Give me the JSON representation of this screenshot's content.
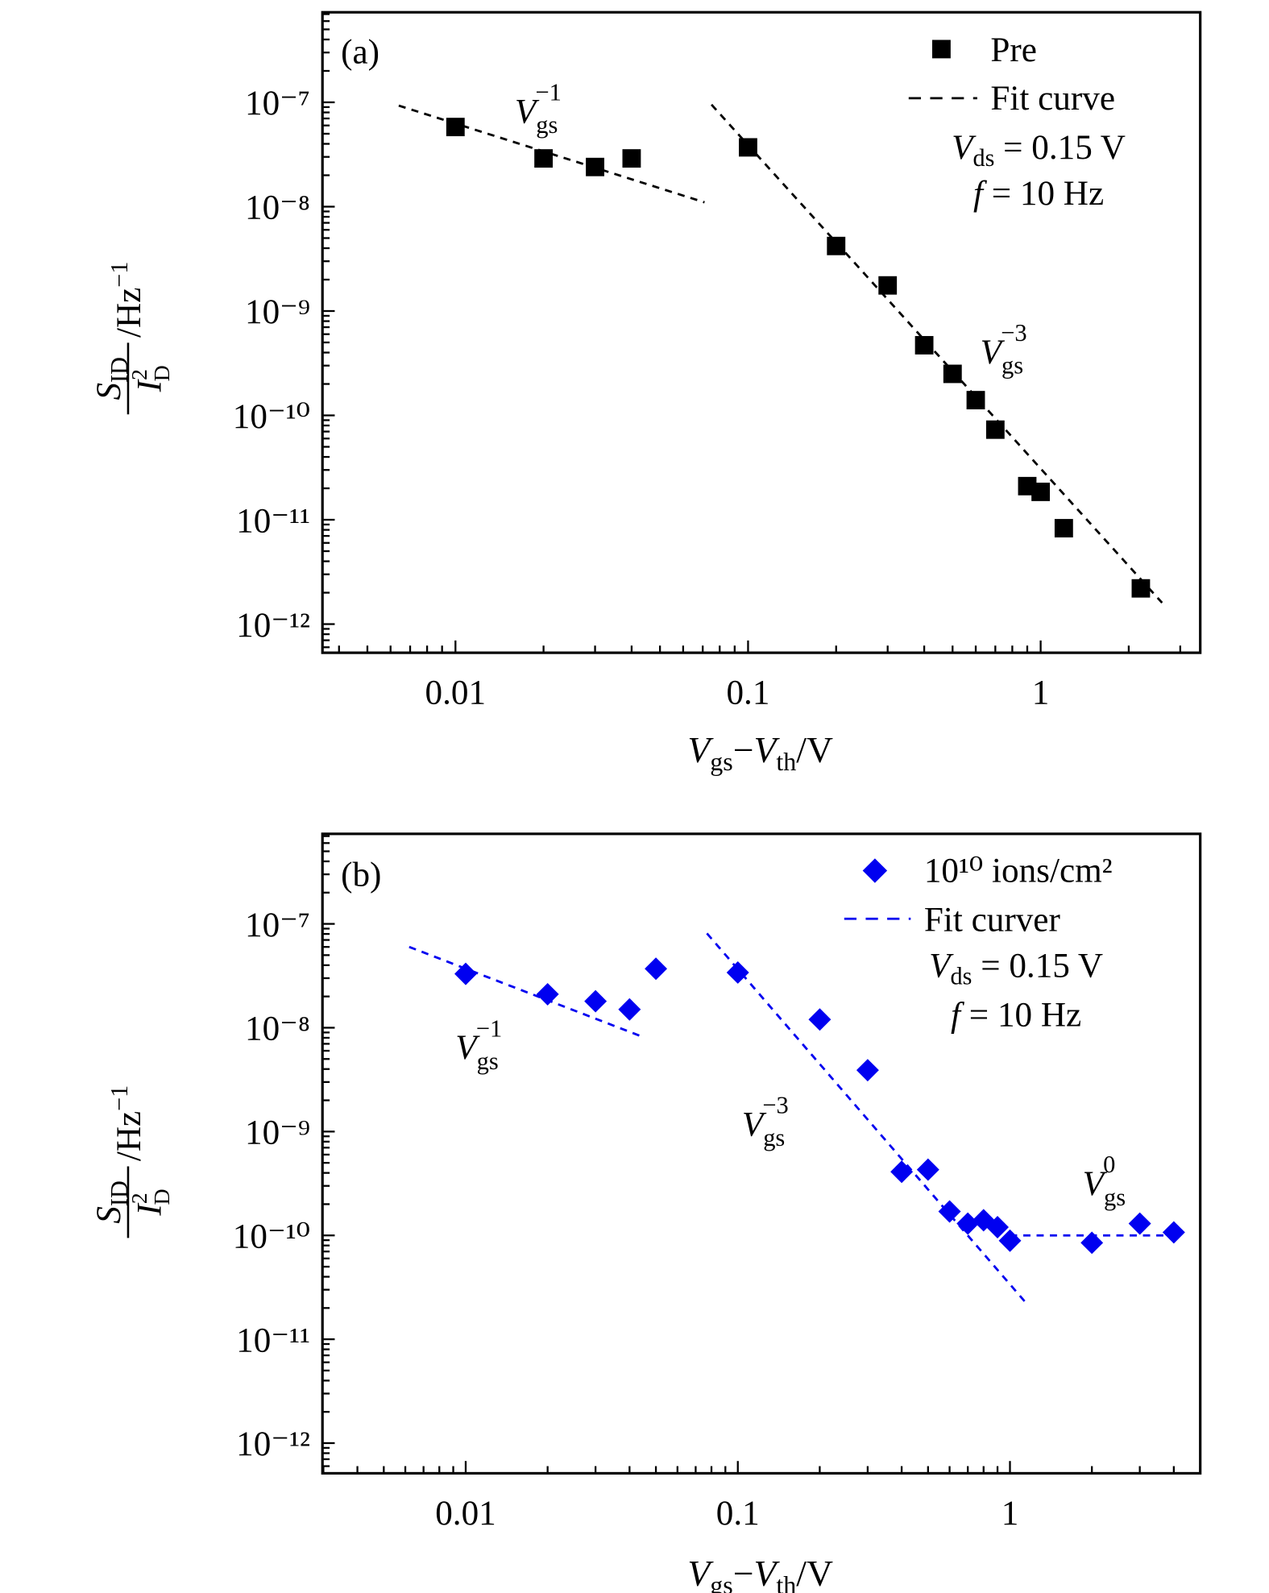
{
  "chart_data": [
    {
      "type": "scatter",
      "panel_label": "(a)",
      "x_scale": "log",
      "y_scale": "log",
      "xlim": [
        0.0035,
        3.5
      ],
      "ylim": [
        7.3e-13,
        7.3e-07
      ],
      "xticks": [
        0.01,
        0.1,
        1
      ],
      "xtick_labels": [
        "0.01",
        "0.1",
        "1"
      ],
      "yticks": [
        1e-07,
        1e-08,
        1e-09,
        1e-10,
        1e-11,
        1e-12
      ],
      "ytick_labels": [
        "10⁻⁷",
        "10⁻⁸",
        "10⁻⁹",
        "10⁻¹⁰",
        "10⁻¹¹",
        "10⁻¹²"
      ],
      "xlabel": {
        "v1": "V",
        "v1_sub": "gs",
        "mid": "−",
        "v2": "V",
        "v2_sub": "th",
        "unit": "/V"
      },
      "ylabel": {
        "num": "S",
        "num_sub": "ID",
        "den": "I",
        "den_sub": "D",
        "den_sup": "2",
        "unit": "/Hz",
        "unit_sup": "−1"
      },
      "grid": false,
      "legend_position": "top-right",
      "color": "#000000",
      "marker": "square",
      "series": [
        {
          "name": "Pre",
          "x": [
            0.01,
            0.02,
            0.03,
            0.04,
            0.1,
            0.2,
            0.3,
            0.4,
            0.5,
            0.6,
            0.7,
            0.9,
            1.0,
            1.2,
            2.2
          ],
          "y": [
            5.8e-08,
            2.9e-08,
            2.4e-08,
            2.9e-08,
            3.7e-08,
            4.2e-09,
            1.76e-09,
            4.7e-10,
            2.5e-10,
            1.4e-10,
            7.3e-11,
            2.1e-11,
            1.85e-11,
            8.3e-12,
            2.2e-12
          ]
        }
      ],
      "fit_label": "Fit curve",
      "fits": [
        {
          "x": [
            0.0064,
            0.071
          ],
          "y": [
            9.3e-08,
            1.1e-08
          ]
        },
        {
          "x": [
            0.075,
            2.6
          ],
          "y": [
            9.5e-08,
            1.6e-12
          ]
        }
      ],
      "conditions": [
        {
          "v": "V",
          "sub": "ds",
          "rest": " = 0.15 V"
        },
        {
          "v": "f",
          "sub": "",
          "rest": " = 10 Hz"
        }
      ],
      "annotations": [
        {
          "base": "V",
          "sub": "gs",
          "sup": "−1"
        },
        {
          "base": "V",
          "sub": "gs",
          "sup": "−3"
        }
      ]
    },
    {
      "type": "scatter",
      "panel_label": "(b)",
      "x_scale": "log",
      "y_scale": "log",
      "xlim": [
        0.003,
        5.0
      ],
      "ylim": [
        4.7e-13,
        7.4e-07
      ],
      "xticks": [
        0.01,
        0.1,
        1
      ],
      "xtick_labels": [
        "0.01",
        "0.1",
        "1"
      ],
      "yticks": [
        1e-07,
        1e-08,
        1e-09,
        1e-10,
        1e-11,
        1e-12
      ],
      "ytick_labels": [
        "10⁻⁷",
        "10⁻⁸",
        "10⁻⁹",
        "10⁻¹⁰",
        "10⁻¹¹",
        "10⁻¹²"
      ],
      "xlabel": {
        "v1": "V",
        "v1_sub": "gs",
        "mid": "−",
        "v2": "V",
        "v2_sub": "th",
        "unit": "/V"
      },
      "ylabel": {
        "num": "S",
        "num_sub": "ID",
        "den": "I",
        "den_sub": "D",
        "den_sup": "2",
        "unit": "/Hz",
        "unit_sup": "−1"
      },
      "grid": false,
      "legend_position": "top-right",
      "color": "#0000f0",
      "marker": "diamond",
      "series": [
        {
          "name": "10¹⁰ ions/cm²",
          "x": [
            0.01,
            0.02,
            0.03,
            0.04,
            0.05,
            0.1,
            0.2,
            0.3,
            0.4,
            0.5,
            0.6,
            0.7,
            0.8,
            0.9,
            1.0,
            2,
            3,
            4
          ],
          "y": [
            3.3e-08,
            2.1e-08,
            1.8e-08,
            1.5e-08,
            3.7e-08,
            3.4e-08,
            1.2e-08,
            3.9e-09,
            4.1e-10,
            4.3e-10,
            1.7e-10,
            1.3e-10,
            1.4e-10,
            1.2e-10,
            8.9e-11,
            8.5e-11,
            1.3e-10,
            1.07e-10
          ]
        }
      ],
      "fit_label": "Fit curver",
      "fits": [
        {
          "x": [
            0.0062,
            0.044
          ],
          "y": [
            6e-08,
            8.3e-09
          ]
        },
        {
          "x": [
            0.077,
            1.17
          ],
          "y": [
            8.1e-08,
            2.1e-11
          ]
        },
        {
          "x": [
            1.0,
            4.1
          ],
          "y": [
            1e-10,
            1e-10
          ]
        }
      ],
      "conditions": [
        {
          "v": "V",
          "sub": "ds",
          "rest": " = 0.15 V"
        },
        {
          "v": "f",
          "sub": "",
          "rest": " = 10 Hz"
        }
      ],
      "annotations": [
        {
          "base": "V",
          "sub": "gs",
          "sup": "−1"
        },
        {
          "base": "V",
          "sub": "gs",
          "sup": "−3"
        },
        {
          "base": "V",
          "sub": "gs",
          "sup": "0"
        }
      ]
    }
  ]
}
